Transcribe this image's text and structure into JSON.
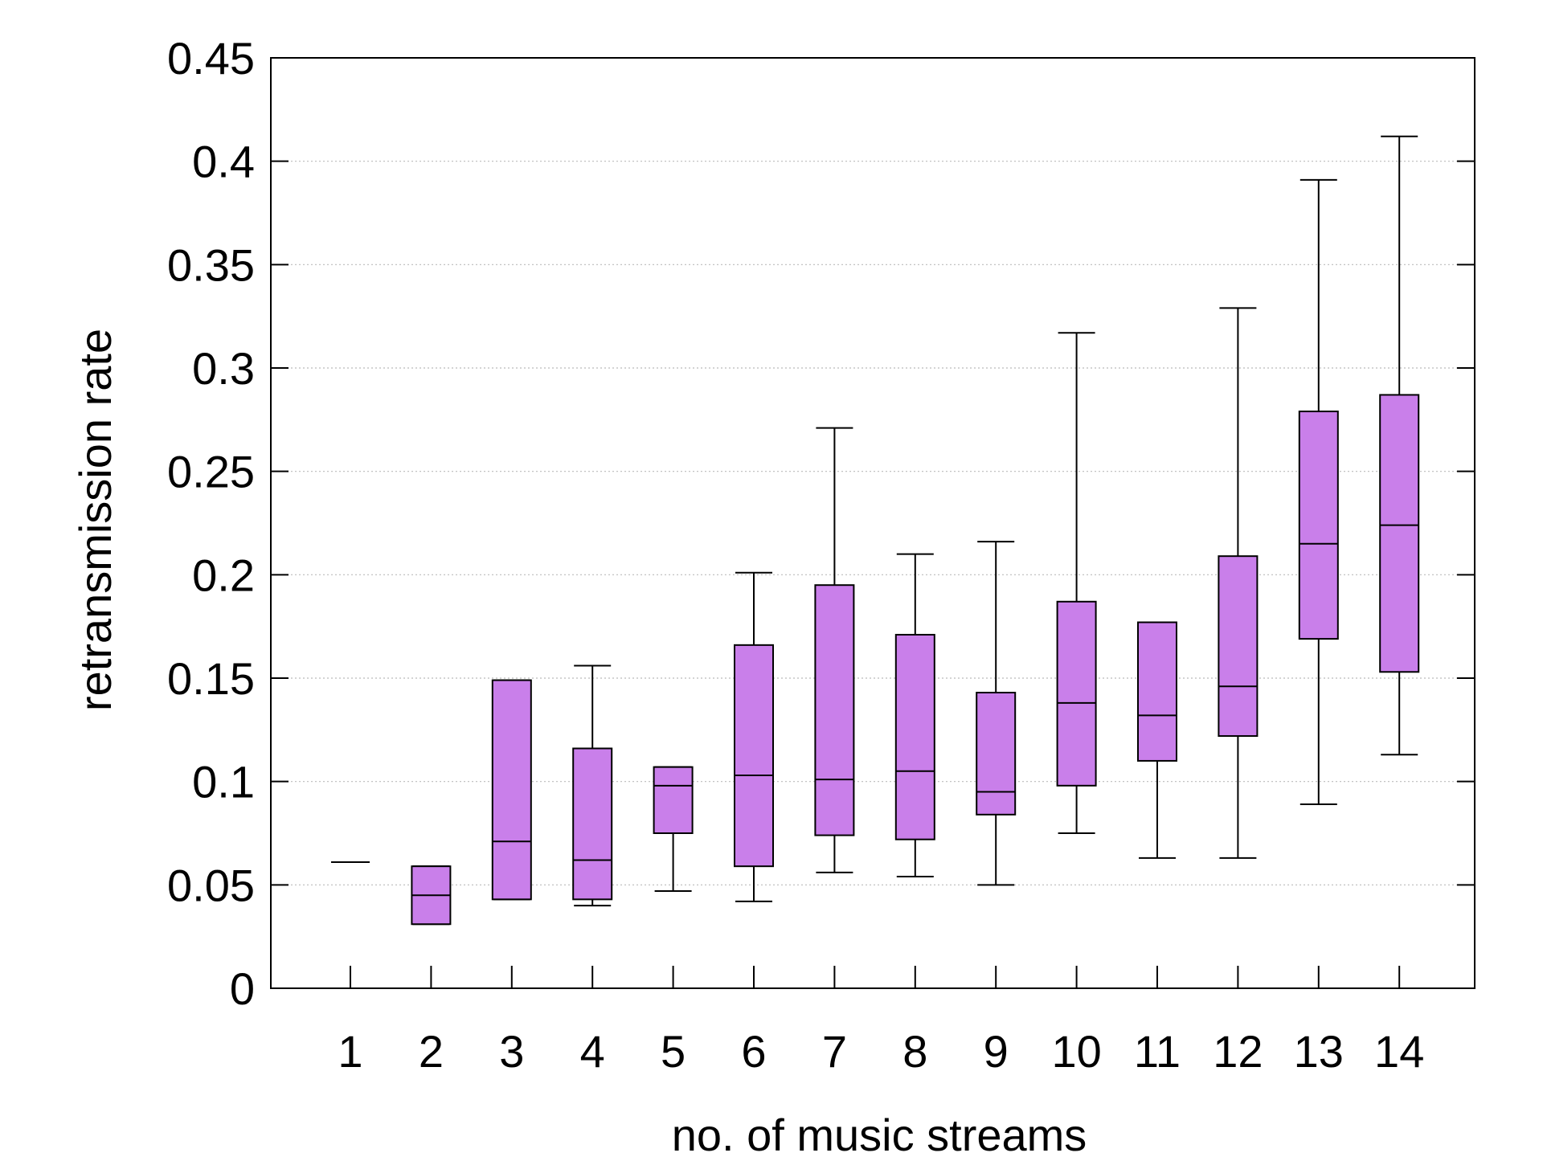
{
  "chart_data": {
    "type": "boxplot",
    "title": "",
    "xlabel": "no. of music streams",
    "ylabel": "retransmission rate",
    "ylim": [
      0,
      0.45
    ],
    "yticks": [
      "0",
      "0.05",
      "0.1",
      "0.15",
      "0.2",
      "0.25",
      "0.3",
      "0.35",
      "0.4",
      "0.45"
    ],
    "ytick_values": [
      0,
      0.05,
      0.1,
      0.15,
      0.2,
      0.25,
      0.3,
      0.35,
      0.4,
      0.45
    ],
    "categories": [
      "1",
      "2",
      "3",
      "4",
      "5",
      "6",
      "7",
      "8",
      "9",
      "10",
      "11",
      "12",
      "13",
      "14"
    ],
    "box_color": "#c97fea",
    "grid": "horizontal dotted",
    "boxes": [
      {
        "label": "1",
        "min": 0.061,
        "q1": 0.061,
        "median": 0.061,
        "q3": 0.061,
        "max": 0.061
      },
      {
        "label": "2",
        "min": 0.031,
        "q1": 0.031,
        "median": 0.045,
        "q3": 0.059,
        "max": 0.059
      },
      {
        "label": "3",
        "min": 0.043,
        "q1": 0.043,
        "median": 0.071,
        "q3": 0.149,
        "max": 0.149
      },
      {
        "label": "4",
        "min": 0.04,
        "q1": 0.043,
        "median": 0.062,
        "q3": 0.116,
        "max": 0.156
      },
      {
        "label": "5",
        "min": 0.047,
        "q1": 0.075,
        "median": 0.098,
        "q3": 0.107,
        "max": 0.107
      },
      {
        "label": "6",
        "min": 0.042,
        "q1": 0.059,
        "median": 0.103,
        "q3": 0.166,
        "max": 0.201
      },
      {
        "label": "7",
        "min": 0.056,
        "q1": 0.074,
        "median": 0.101,
        "q3": 0.195,
        "max": 0.271
      },
      {
        "label": "8",
        "min": 0.054,
        "q1": 0.072,
        "median": 0.105,
        "q3": 0.171,
        "max": 0.21
      },
      {
        "label": "9",
        "min": 0.05,
        "q1": 0.084,
        "median": 0.095,
        "q3": 0.143,
        "max": 0.216
      },
      {
        "label": "10",
        "min": 0.075,
        "q1": 0.098,
        "median": 0.138,
        "q3": 0.187,
        "max": 0.317
      },
      {
        "label": "11",
        "min": 0.063,
        "q1": 0.11,
        "median": 0.132,
        "q3": 0.177,
        "max": 0.177
      },
      {
        "label": "12",
        "min": 0.063,
        "q1": 0.122,
        "median": 0.146,
        "q3": 0.209,
        "max": 0.329
      },
      {
        "label": "13",
        "min": 0.089,
        "q1": 0.169,
        "median": 0.215,
        "q3": 0.279,
        "max": 0.391
      },
      {
        "label": "14",
        "min": 0.113,
        "q1": 0.153,
        "median": 0.224,
        "q3": 0.287,
        "max": 0.412
      }
    ]
  }
}
